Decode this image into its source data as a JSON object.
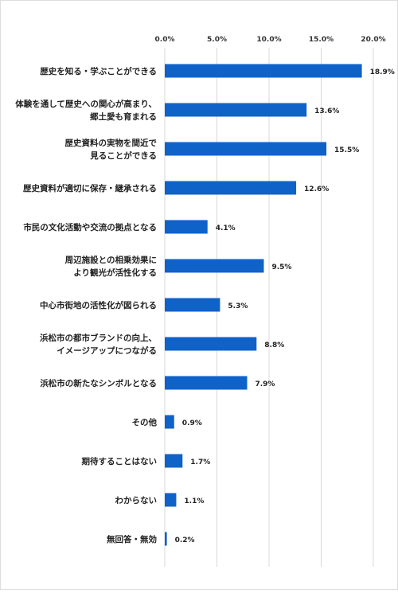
{
  "chart_data": {
    "type": "bar",
    "orientation": "horizontal",
    "title": "",
    "xlabel": "",
    "ylabel": "",
    "xlim": [
      0,
      20
    ],
    "x_ticks": [
      0,
      5,
      10,
      15,
      20
    ],
    "x_tick_labels": [
      "0.0%",
      "5.0%",
      "10.0%",
      "15.0%",
      "20.0%"
    ],
    "x_axis_position": "top",
    "grid": true,
    "legend": "none",
    "bar_color": "#0f62c8",
    "categories": [
      [
        "歴史を知る・学ぶことができる"
      ],
      [
        "体験を通して歴史への関心が高まり、",
        "郷土愛も育まれる"
      ],
      [
        "歴史資料の実物を間近で",
        "見ることができる"
      ],
      [
        "歴史資料が適切に保存・継承される"
      ],
      [
        "市民の文化活動や交流の拠点となる"
      ],
      [
        "周辺施設との相乗効果に",
        "より観光が活性化する"
      ],
      [
        "中心市街地の活性化が図られる"
      ],
      [
        "浜松市の都市ブランドの向上、",
        "イメージアップにつながる"
      ],
      [
        "浜松市の新たなシンボルとなる"
      ],
      [
        "その他"
      ],
      [
        "期待することはない"
      ],
      [
        "わからない"
      ],
      [
        "無回答・無効"
      ]
    ],
    "values": [
      18.9,
      13.6,
      15.5,
      12.6,
      4.1,
      9.5,
      5.3,
      8.8,
      7.9,
      0.9,
      1.7,
      1.1,
      0.2
    ],
    "value_labels": [
      "18.9%",
      "13.6%",
      "15.5%",
      "12.6%",
      "4.1%",
      "9.5%",
      "5.3%",
      "8.8%",
      "7.9%",
      "0.9%",
      "1.7%",
      "1.1%",
      "0.2%"
    ]
  }
}
